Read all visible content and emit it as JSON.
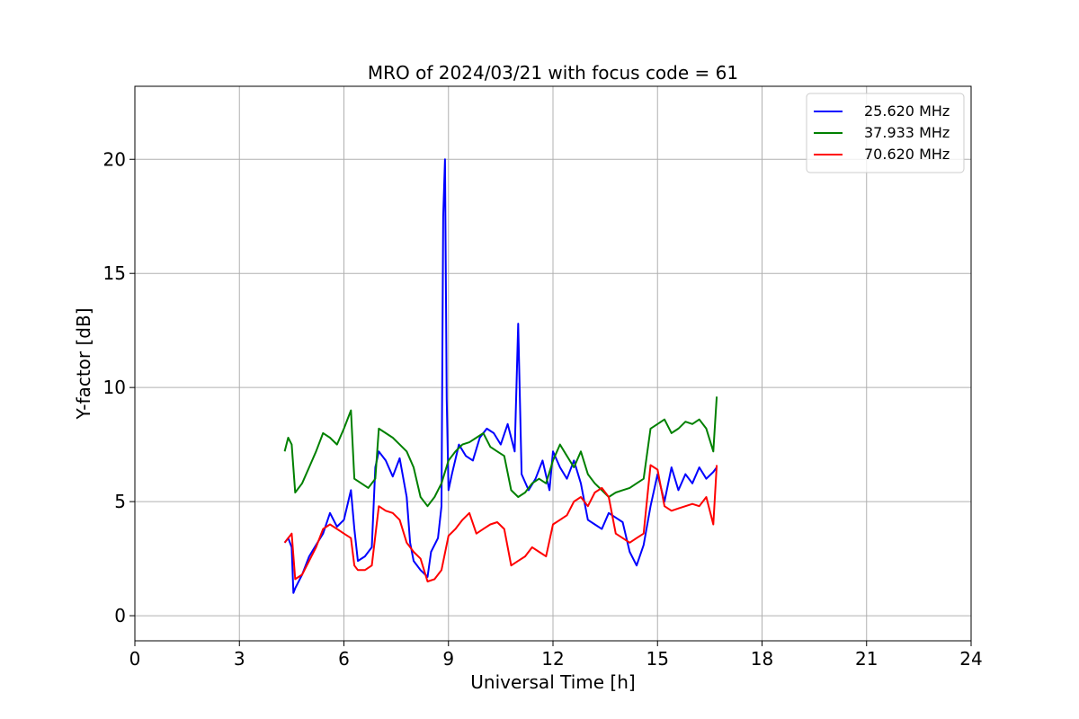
{
  "chart_data": {
    "type": "line",
    "title": "MRO of 2024/03/21 with focus code = 61",
    "xlabel": "Universal Time [h]",
    "ylabel": "Y-factor [dB]",
    "xlim": [
      0,
      24
    ],
    "ylim": [
      -1.1,
      23.2
    ],
    "xticks": [
      0,
      3,
      6,
      9,
      12,
      15,
      18,
      21,
      24
    ],
    "yticks": [
      0,
      5,
      10,
      15,
      20
    ],
    "grid": true,
    "legend_position": "top-right",
    "series": [
      {
        "name": "25.620 MHz",
        "color": "#0000ff",
        "x": [
          4.3,
          4.4,
          4.5,
          4.55,
          4.6,
          4.8,
          5.0,
          5.2,
          5.4,
          5.6,
          5.8,
          6.0,
          6.2,
          6.3,
          6.4,
          6.6,
          6.8,
          6.9,
          7.0,
          7.2,
          7.4,
          7.6,
          7.8,
          7.9,
          8.0,
          8.2,
          8.4,
          8.5,
          8.7,
          8.8,
          8.85,
          8.9,
          8.95,
          9.0,
          9.1,
          9.3,
          9.5,
          9.7,
          9.9,
          10.1,
          10.3,
          10.5,
          10.7,
          10.9,
          11.0,
          11.1,
          11.3,
          11.5,
          11.7,
          11.9,
          12.0,
          12.2,
          12.4,
          12.6,
          12.8,
          13.0,
          13.2,
          13.4,
          13.6,
          13.8,
          14.0,
          14.2,
          14.4,
          14.6,
          14.8,
          15.0,
          15.2,
          15.4,
          15.6,
          15.8,
          16.0,
          16.2,
          16.4,
          16.6,
          16.7
        ],
        "y": [
          3.2,
          3.4,
          3.0,
          1.0,
          1.2,
          1.8,
          2.6,
          3.1,
          3.6,
          4.5,
          3.9,
          4.2,
          5.5,
          3.8,
          2.4,
          2.6,
          3.0,
          6.5,
          7.2,
          6.8,
          6.1,
          6.9,
          5.2,
          3.2,
          2.4,
          2.0,
          1.7,
          2.8,
          3.4,
          4.8,
          17.5,
          20.0,
          9.5,
          5.5,
          6.2,
          7.5,
          7.0,
          6.8,
          7.8,
          8.2,
          8.0,
          7.5,
          8.4,
          7.2,
          12.8,
          6.2,
          5.5,
          6.0,
          6.8,
          5.5,
          7.2,
          6.5,
          6.0,
          6.8,
          5.8,
          4.2,
          4.0,
          3.8,
          4.5,
          4.3,
          4.1,
          2.8,
          2.2,
          3.1,
          4.8,
          6.2,
          5.0,
          6.5,
          5.5,
          6.2,
          5.8,
          6.5,
          6.0,
          6.3,
          6.5
        ]
      },
      {
        "name": "37.933 MHz",
        "color": "#008000",
        "x": [
          4.3,
          4.4,
          4.5,
          4.6,
          4.8,
          5.0,
          5.2,
          5.4,
          5.6,
          5.8,
          6.0,
          6.2,
          6.3,
          6.5,
          6.7,
          6.9,
          7.0,
          7.2,
          7.4,
          7.6,
          7.8,
          8.0,
          8.2,
          8.4,
          8.6,
          8.8,
          9.0,
          9.2,
          9.4,
          9.6,
          9.8,
          10.0,
          10.2,
          10.4,
          10.6,
          10.8,
          11.0,
          11.2,
          11.4,
          11.6,
          11.8,
          12.0,
          12.2,
          12.4,
          12.6,
          12.8,
          13.0,
          13.2,
          13.4,
          13.6,
          13.8,
          14.0,
          14.2,
          14.4,
          14.6,
          14.8,
          15.0,
          15.2,
          15.4,
          15.6,
          15.8,
          16.0,
          16.2,
          16.4,
          16.6,
          16.7
        ],
        "y": [
          7.2,
          7.8,
          7.5,
          5.4,
          5.8,
          6.5,
          7.2,
          8.0,
          7.8,
          7.5,
          8.2,
          9.0,
          6.0,
          5.8,
          5.6,
          6.0,
          8.2,
          8.0,
          7.8,
          7.5,
          7.2,
          6.5,
          5.2,
          4.8,
          5.2,
          5.8,
          6.8,
          7.2,
          7.5,
          7.6,
          7.8,
          8.0,
          7.4,
          7.2,
          7.0,
          5.5,
          5.2,
          5.4,
          5.8,
          6.0,
          5.8,
          6.8,
          7.5,
          7.0,
          6.5,
          7.2,
          6.2,
          5.8,
          5.5,
          5.2,
          5.4,
          5.5,
          5.6,
          5.8,
          6.0,
          8.2,
          8.4,
          8.6,
          8.0,
          8.2,
          8.5,
          8.4,
          8.6,
          8.2,
          7.2,
          9.6
        ]
      },
      {
        "name": "70.620 MHz",
        "color": "#ff0000",
        "x": [
          4.3,
          4.4,
          4.5,
          4.6,
          4.8,
          5.0,
          5.2,
          5.4,
          5.6,
          5.8,
          6.0,
          6.2,
          6.3,
          6.4,
          6.6,
          6.8,
          7.0,
          7.2,
          7.4,
          7.6,
          7.8,
          8.0,
          8.2,
          8.4,
          8.6,
          8.8,
          9.0,
          9.2,
          9.4,
          9.6,
          9.8,
          10.0,
          10.2,
          10.4,
          10.6,
          10.8,
          11.0,
          11.2,
          11.4,
          11.6,
          11.8,
          12.0,
          12.2,
          12.4,
          12.6,
          12.8,
          13.0,
          13.2,
          13.4,
          13.6,
          13.8,
          14.0,
          14.2,
          14.4,
          14.6,
          14.8,
          15.0,
          15.2,
          15.4,
          15.6,
          15.8,
          16.0,
          16.2,
          16.4,
          16.6,
          16.7
        ],
        "y": [
          3.2,
          3.4,
          3.6,
          1.6,
          1.8,
          2.4,
          3.0,
          3.8,
          4.0,
          3.8,
          3.6,
          3.4,
          2.2,
          2.0,
          2.0,
          2.2,
          4.8,
          4.6,
          4.5,
          4.2,
          3.2,
          2.8,
          2.5,
          1.5,
          1.6,
          2.0,
          3.5,
          3.8,
          4.2,
          4.5,
          3.6,
          3.8,
          4.0,
          4.1,
          3.8,
          2.2,
          2.4,
          2.6,
          3.0,
          2.8,
          2.6,
          4.0,
          4.2,
          4.4,
          5.0,
          5.2,
          4.8,
          5.4,
          5.6,
          5.2,
          3.6,
          3.4,
          3.2,
          3.4,
          3.6,
          6.6,
          6.4,
          4.8,
          4.6,
          4.7,
          4.8,
          4.9,
          4.8,
          5.2,
          4.0,
          6.6
        ]
      }
    ]
  }
}
